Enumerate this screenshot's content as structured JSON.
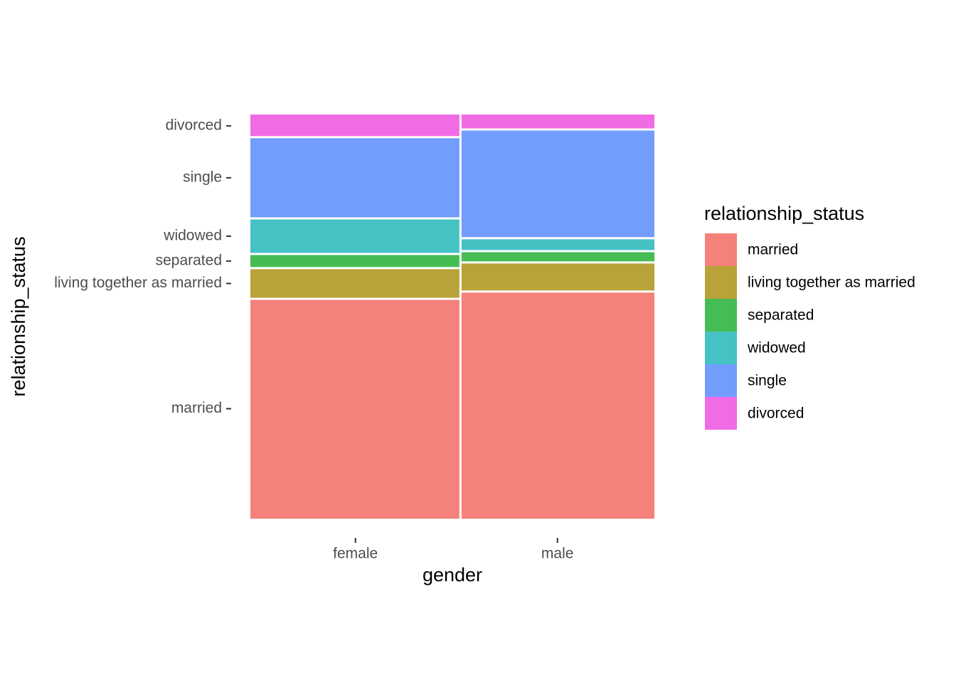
{
  "chart_data": {
    "type": "mosaic",
    "x_label": "gender",
    "y_label": "relationship_status",
    "legend_title": "relationship_status",
    "categories": [
      "female",
      "male"
    ],
    "widths": [
      52,
      48
    ],
    "series": [
      {
        "name": "married",
        "color": "#F5817B",
        "values": [
          54.4,
          56.2
        ]
      },
      {
        "name": "living together as married",
        "color": "#B9A338",
        "values": [
          7.6,
          7.2
        ]
      },
      {
        "name": "separated",
        "color": "#46BC54",
        "values": [
          3.5,
          2.8
        ]
      },
      {
        "name": "widowed",
        "color": "#46C2C5",
        "values": [
          8.8,
          3.2
        ]
      },
      {
        "name": "single",
        "color": "#739DFD",
        "values": [
          20.1,
          26.9
        ]
      },
      {
        "name": "divorced",
        "color": "#F16BE4",
        "values": [
          5.6,
          3.7
        ]
      }
    ]
  }
}
